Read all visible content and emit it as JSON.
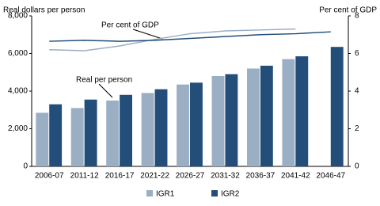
{
  "chart_data": {
    "type": "bar",
    "y_label": "Real dollars per person",
    "y2_label": "Per cent of GDP",
    "annotations": [
      "Per cent of GDP",
      "Real per person"
    ],
    "categories": [
      "2006-07",
      "2011-12",
      "2016-17",
      "2021-22",
      "2026-27",
      "2031-32",
      "2036-37",
      "2041-42",
      "2046-47"
    ],
    "series": [
      {
        "name": "IGR1",
        "color": "#9aaec4",
        "values": [
          2850,
          3100,
          3500,
          3900,
          4350,
          4800,
          5200,
          5700,
          null
        ]
      },
      {
        "name": "IGR2",
        "color": "#234e79",
        "values": [
          3300,
          3550,
          3800,
          4100,
          4450,
          4900,
          5350,
          5850,
          6350
        ]
      }
    ],
    "y2_series": [
      {
        "color": "#9aaec4",
        "axis": "y2",
        "values": [
          6.2,
          6.15,
          6.4,
          6.75,
          7.05,
          7.2,
          7.25,
          7.3,
          null
        ]
      },
      {
        "color": "#234e79",
        "axis": "y2",
        "values": [
          6.65,
          6.7,
          6.65,
          6.7,
          6.8,
          6.9,
          7.0,
          7.05,
          7.15
        ]
      }
    ],
    "ylim": [
      0,
      8000
    ],
    "yticks": [
      0,
      {
        "value": 2000,
        "label": "2,000"
      },
      {
        "value": 4000,
        "label": "4,000"
      },
      {
        "value": 6000,
        "label": "6,000"
      },
      {
        "value": 8000,
        "label": "8,000"
      }
    ],
    "y2lim": [
      0,
      8
    ],
    "y2ticks": [
      0,
      2,
      4,
      6,
      8
    ],
    "grid": false
  }
}
